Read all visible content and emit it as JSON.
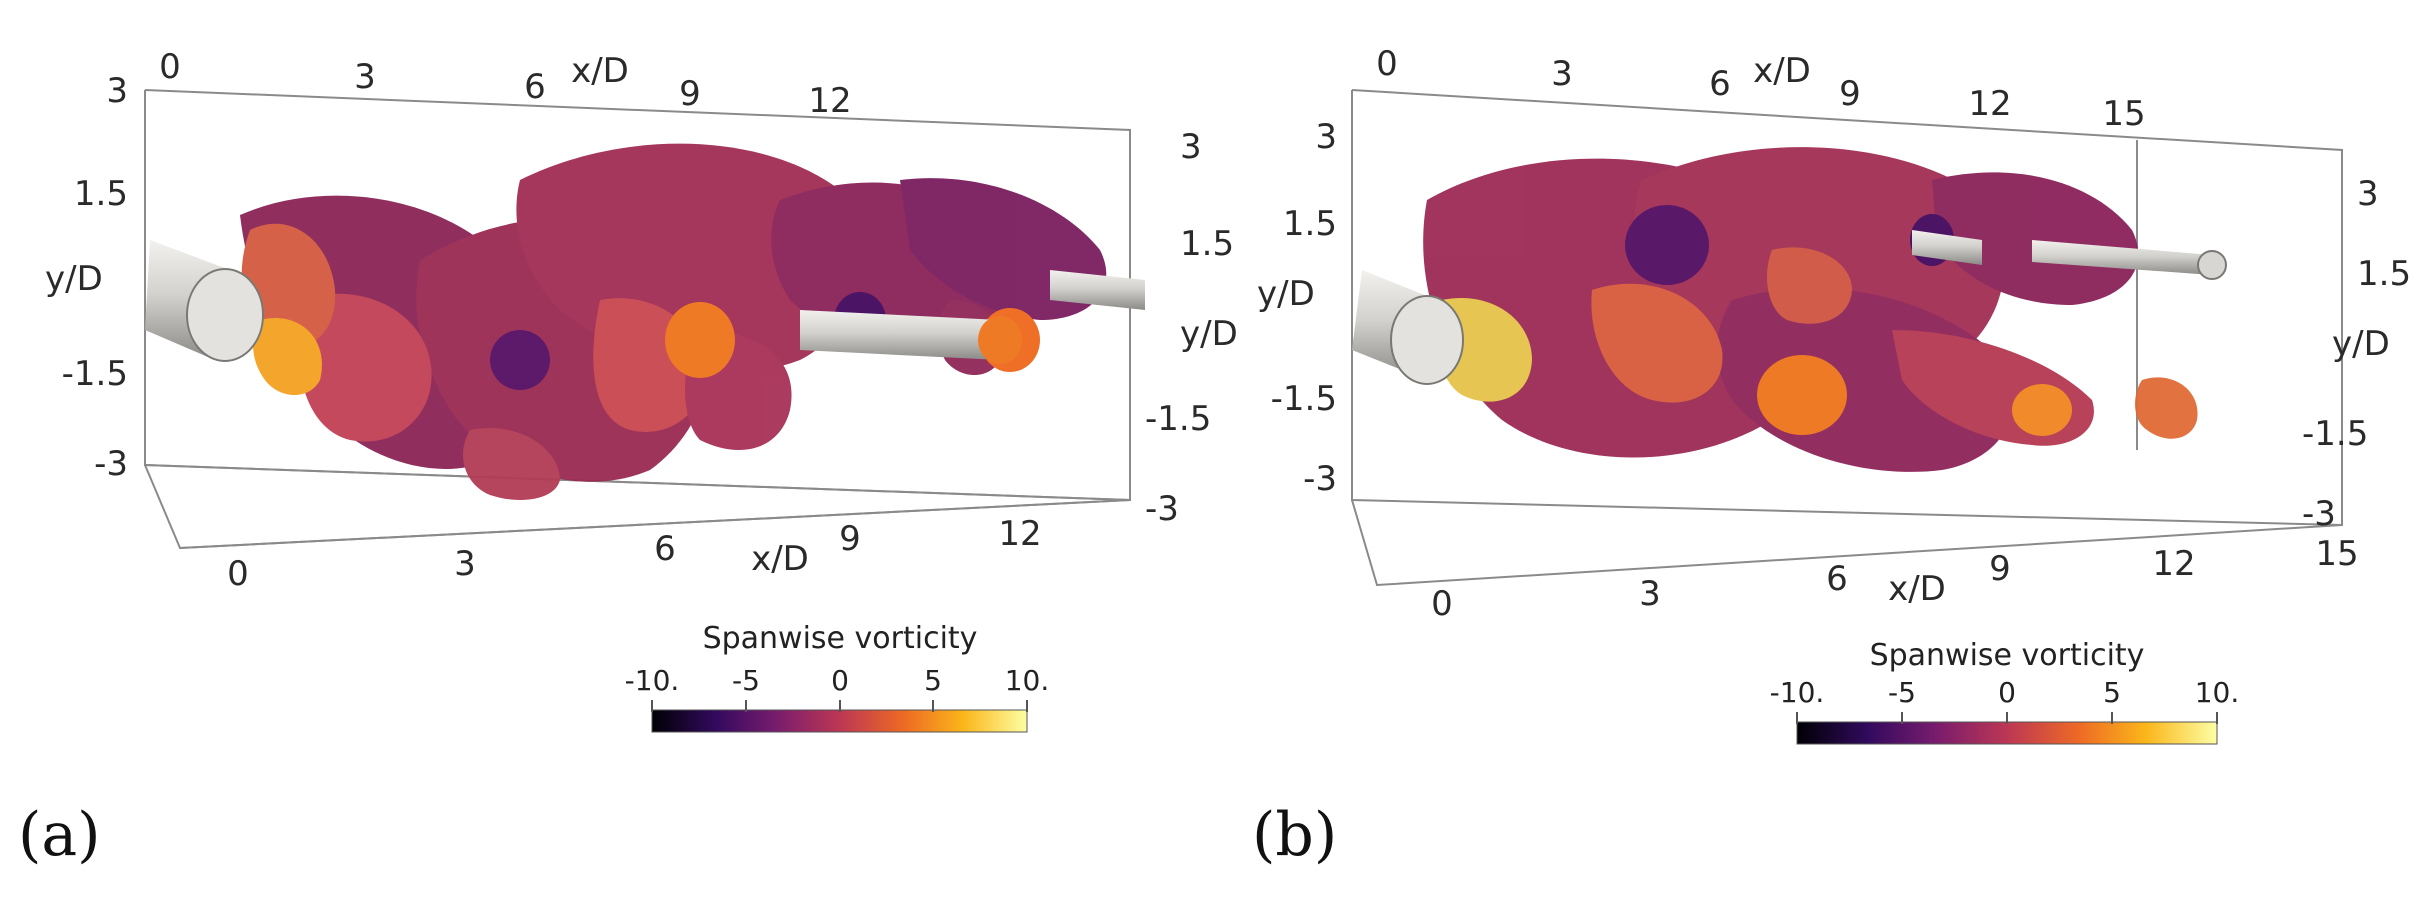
{
  "panels": [
    {
      "id": "a",
      "label": "(a)",
      "x_axis_label": "x/D",
      "y_axis_label": "y/D",
      "x_ticks_top": [
        "0",
        "3",
        "6",
        "9",
        "12"
      ],
      "x_ticks_bottom": [
        "0",
        "3",
        "6",
        "9",
        "12"
      ],
      "y_ticks_left": [
        "3",
        "1.5",
        "-1.5",
        "-3"
      ],
      "y_ticks_right": [
        "3",
        "1.5",
        "-1.5",
        "-3"
      ],
      "colorbar": {
        "title": "Spanwise vorticity",
        "ticks": [
          "-10.",
          "-5",
          "0",
          "5",
          "10."
        ]
      }
    },
    {
      "id": "b",
      "label": "(b)",
      "x_axis_label": "x/D",
      "y_axis_label": "y/D",
      "x_ticks_top": [
        "0",
        "3",
        "6",
        "9",
        "12",
        "15"
      ],
      "x_ticks_bottom": [
        "0",
        "3",
        "6",
        "9",
        "12",
        "15"
      ],
      "y_ticks_left": [
        "3",
        "1.5",
        "-1.5",
        "-3"
      ],
      "y_ticks_right": [
        "3",
        "1.5",
        "-1.5",
        "-3"
      ],
      "colorbar": {
        "title": "Spanwise vorticity",
        "ticks": [
          "-10.",
          "-5",
          "0",
          "5",
          "10."
        ]
      }
    }
  ],
  "colors": {
    "colormap": [
      "#000004",
      "#320a5e",
      "#781c6d",
      "#bc3754",
      "#ed6925",
      "#fbb61a",
      "#fcffa4"
    ],
    "cylinder": "#d8d6d2",
    "box_line": "#8a8a8a"
  }
}
